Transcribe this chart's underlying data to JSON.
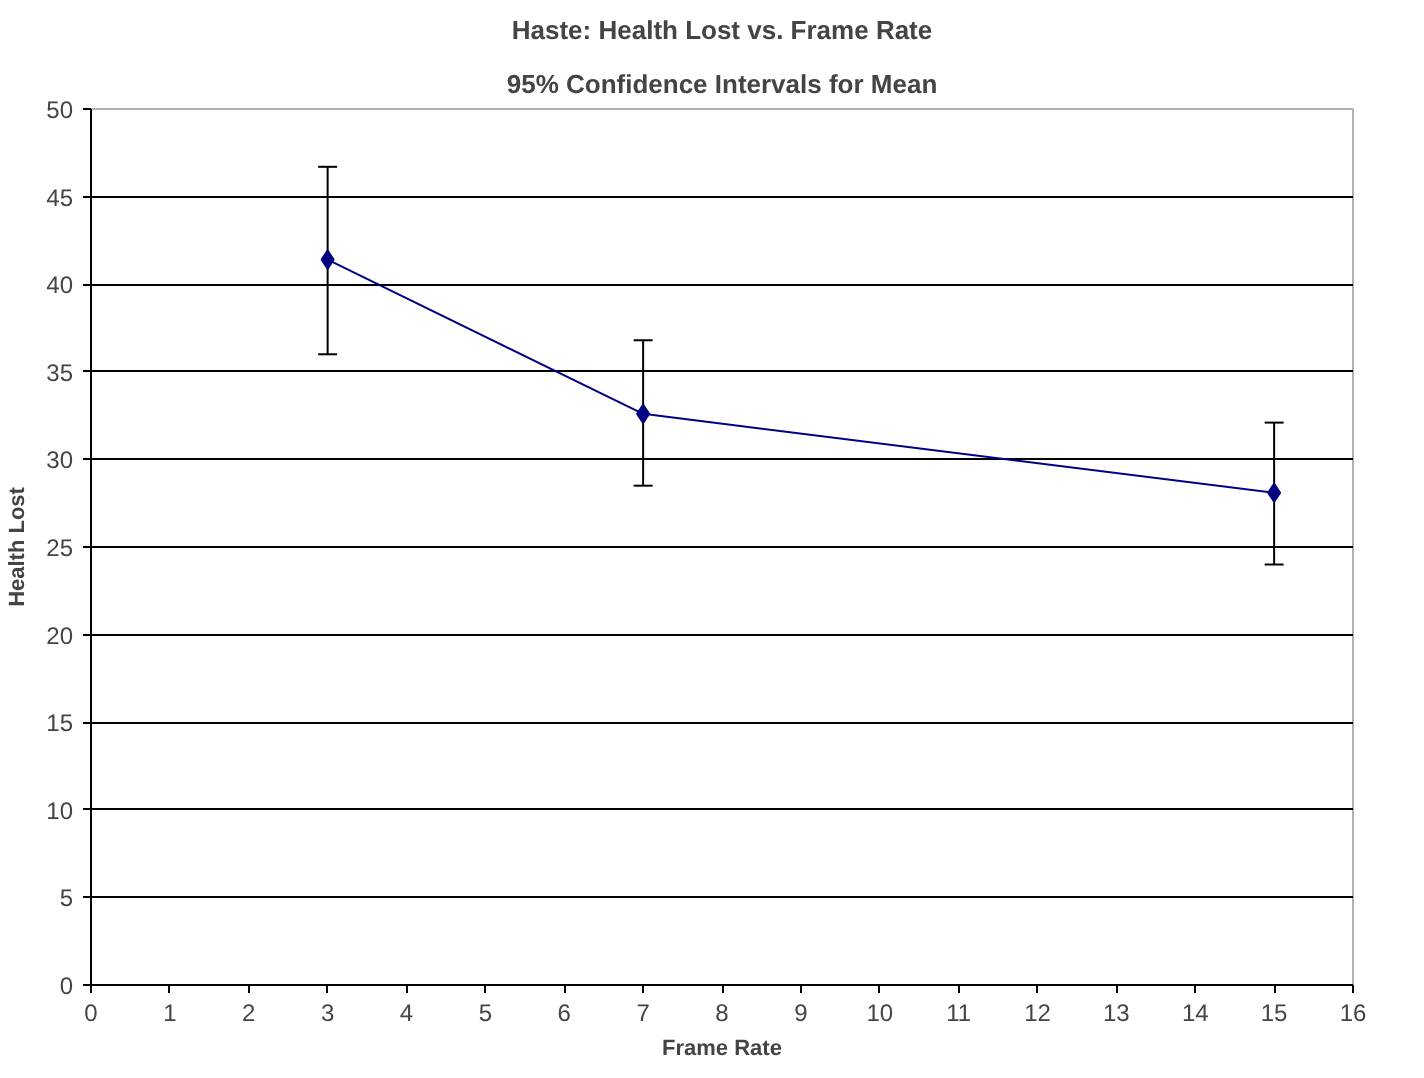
{
  "chart_data": {
    "type": "line",
    "title": "Haste: Health Lost vs. Frame Rate",
    "subtitle": "95% Confidence Intervals for Mean",
    "xlabel": "Frame Rate",
    "ylabel": "Health Lost",
    "x": [
      3,
      7,
      15
    ],
    "series": [
      {
        "color": "#000080",
        "values": [
          41.4,
          32.6,
          28.1
        ],
        "errors": [
          [
            36.0,
            46.7
          ],
          [
            28.5,
            36.8
          ],
          [
            24.0,
            32.1
          ]
        ]
      }
    ],
    "xlim": [
      0,
      16
    ],
    "xticks": [
      0,
      1,
      2,
      3,
      4,
      5,
      6,
      7,
      8,
      9,
      10,
      11,
      12,
      13,
      14,
      15,
      16
    ],
    "ylim": [
      0,
      50
    ],
    "yticks": [
      0,
      5,
      10,
      15,
      20,
      25,
      30,
      35,
      40,
      45,
      50
    ],
    "grid": "y",
    "marker": "diamond",
    "line_style": "solid"
  }
}
